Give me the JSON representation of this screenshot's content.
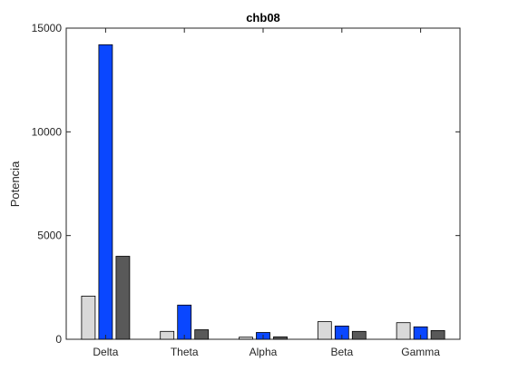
{
  "chart_data": {
    "type": "bar",
    "title": "chb08",
    "xlabel": "",
    "ylabel": "Potencia",
    "categories": [
      "Delta",
      "Theta",
      "Alpha",
      "Beta",
      "Gamma"
    ],
    "ylim": [
      0,
      15000
    ],
    "yticks": [
      0,
      5000,
      10000,
      15000
    ],
    "grid": false,
    "series": [
      {
        "values": [
          2080,
          380,
          100,
          850,
          800
        ],
        "color": "#d9d9d9"
      },
      {
        "values": [
          14200,
          1650,
          330,
          640,
          600
        ],
        "color": "#0a47ff"
      },
      {
        "values": [
          4000,
          460,
          120,
          380,
          420
        ],
        "color": "#595959"
      }
    ]
  }
}
